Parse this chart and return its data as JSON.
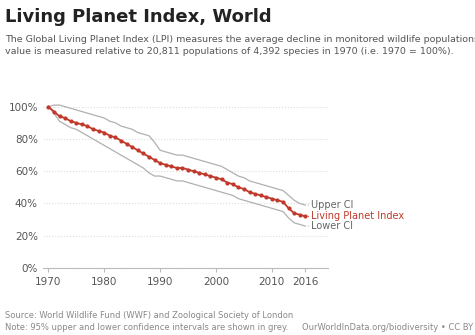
{
  "title": "Living Planet Index, World",
  "subtitle_line1": "The Global Living Planet Index (LPI) measures the average decline in monitored wildlife populations. The index",
  "subtitle_line2": "value is measured relative to 20,811 populations of 4,392 species in 1970 (i.e. 1970 = 100%).",
  "source_left_line1": "Source: World Wildlife Fund (WWF) and Zoological Society of London",
  "source_left_line2": "Note: 95% upper and lower confidence intervals are shown in grey.",
  "source_right": "OurWorldInData.org/biodiversity • CC BY",
  "years": [
    1970,
    1971,
    1972,
    1973,
    1974,
    1975,
    1976,
    1977,
    1978,
    1979,
    1980,
    1981,
    1982,
    1983,
    1984,
    1985,
    1986,
    1987,
    1988,
    1989,
    1990,
    1991,
    1992,
    1993,
    1994,
    1995,
    1996,
    1997,
    1998,
    1999,
    2000,
    2001,
    2002,
    2003,
    2004,
    2005,
    2006,
    2007,
    2008,
    2009,
    2010,
    2011,
    2012,
    2013,
    2014,
    2015,
    2016
  ],
  "lpi": [
    100,
    97,
    94,
    93,
    91,
    90,
    89,
    88,
    86,
    85,
    84,
    82,
    81,
    79,
    77,
    75,
    73,
    71,
    69,
    67,
    65,
    64,
    63,
    62,
    62,
    61,
    60,
    59,
    58,
    57,
    56,
    55,
    53,
    52,
    50,
    49,
    47,
    46,
    45,
    44,
    43,
    42,
    41,
    37,
    34,
    33,
    32
  ],
  "upper_ci": [
    100,
    101,
    101,
    100,
    99,
    98,
    97,
    96,
    95,
    94,
    93,
    91,
    90,
    88,
    87,
    86,
    84,
    83,
    82,
    78,
    73,
    72,
    71,
    70,
    70,
    69,
    68,
    67,
    66,
    65,
    64,
    63,
    61,
    59,
    57,
    56,
    54,
    53,
    52,
    51,
    50,
    49,
    48,
    45,
    42,
    40,
    39
  ],
  "lower_ci": [
    100,
    96,
    91,
    89,
    87,
    86,
    84,
    82,
    80,
    78,
    76,
    74,
    72,
    70,
    68,
    66,
    64,
    62,
    59,
    57,
    57,
    56,
    55,
    54,
    54,
    53,
    52,
    51,
    50,
    49,
    48,
    47,
    46,
    45,
    43,
    42,
    41,
    40,
    39,
    38,
    37,
    36,
    35,
    31,
    28,
    27,
    26
  ],
  "lpi_color": "#c0392b",
  "ci_color": "#b0b0b0",
  "bg_color": "#ffffff",
  "grid_color": "#dddddd",
  "logo_bg": "#1a3a5c",
  "title_fontsize": 13,
  "subtitle_fontsize": 6.8,
  "source_fontsize": 6.0,
  "label_fontsize": 7.0,
  "tick_fontsize": 7.5,
  "ytick_vals": [
    0,
    20,
    40,
    60,
    80,
    100
  ],
  "ylabel_ticks": [
    "0%",
    "20%",
    "40%",
    "60%",
    "80%",
    "100%"
  ],
  "xtick_vals": [
    1970,
    1980,
    1990,
    2000,
    2010,
    2016
  ],
  "xlim": [
    1969,
    2020
  ],
  "ylim": [
    0,
    108
  ]
}
